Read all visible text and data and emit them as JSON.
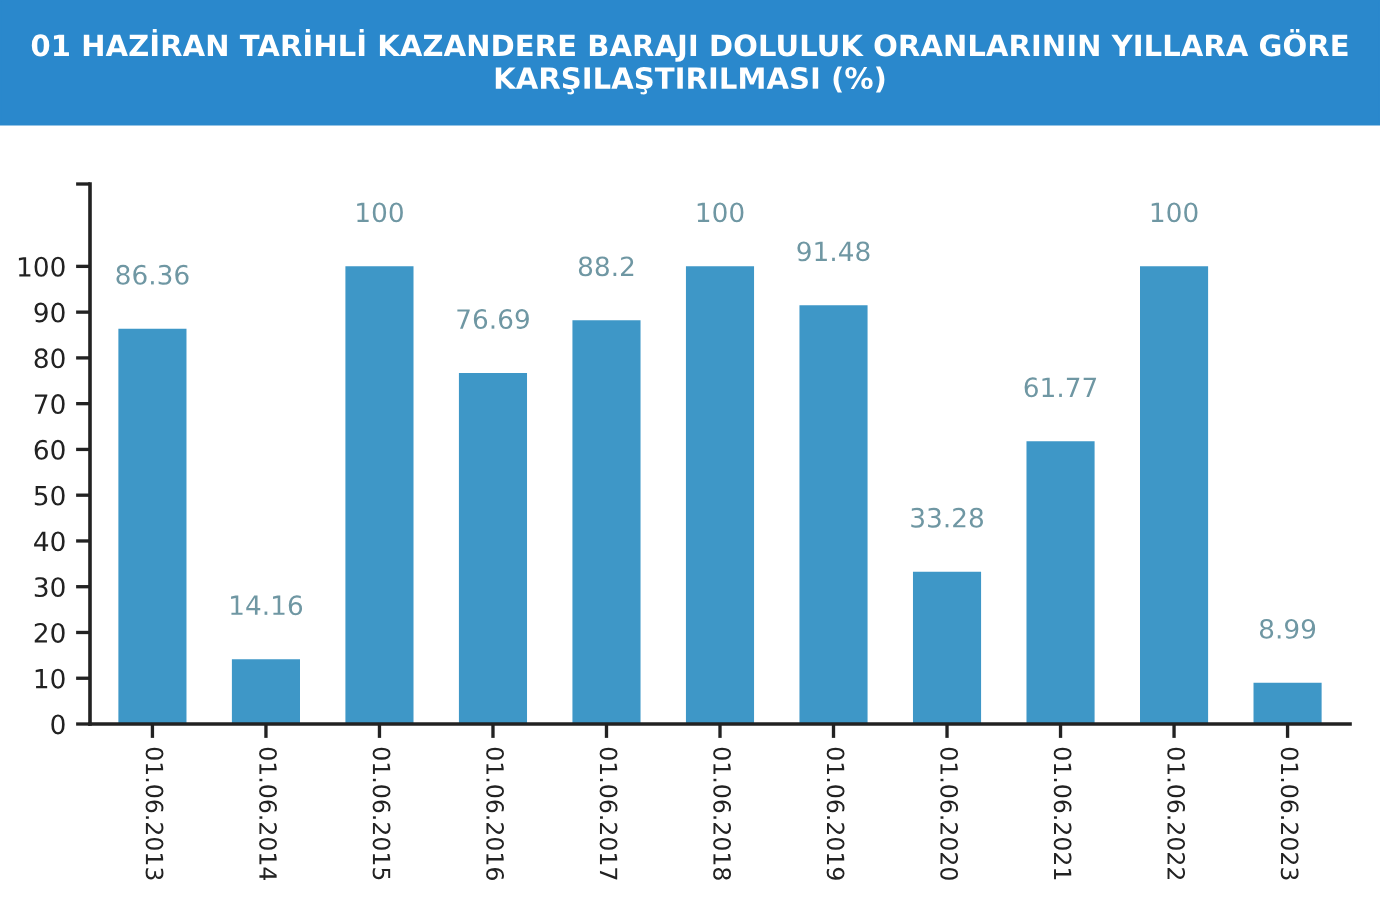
{
  "chart_data": {
    "type": "bar",
    "title": "01 HAZİRAN TARİHLİ KAZANDERE BARAJI DOLULUK ORANLARININ YILLARA GÖRE KARŞILAŞTIRILMASI (%)",
    "categories": [
      "01.06.2013",
      "01.06.2014",
      "01.06.2015",
      "01.06.2016",
      "01.06.2017",
      "01.06.2018",
      "01.06.2019",
      "01.06.2020",
      "01.06.2021",
      "01.06.2022",
      "01.06.2023"
    ],
    "values": [
      86.36,
      14.16,
      100,
      76.69,
      88.2,
      100,
      91.48,
      33.28,
      61.77,
      100,
      8.99
    ],
    "color": "#3e97c7",
    "ylim": [
      0,
      118
    ],
    "yticks": [
      0,
      10,
      20,
      30,
      40,
      50,
      60,
      70,
      80,
      90,
      100,
      {
        "value": 118,
        "label": null
      }
    ],
    "data_labels": true,
    "grid": false,
    "legend": false
  }
}
